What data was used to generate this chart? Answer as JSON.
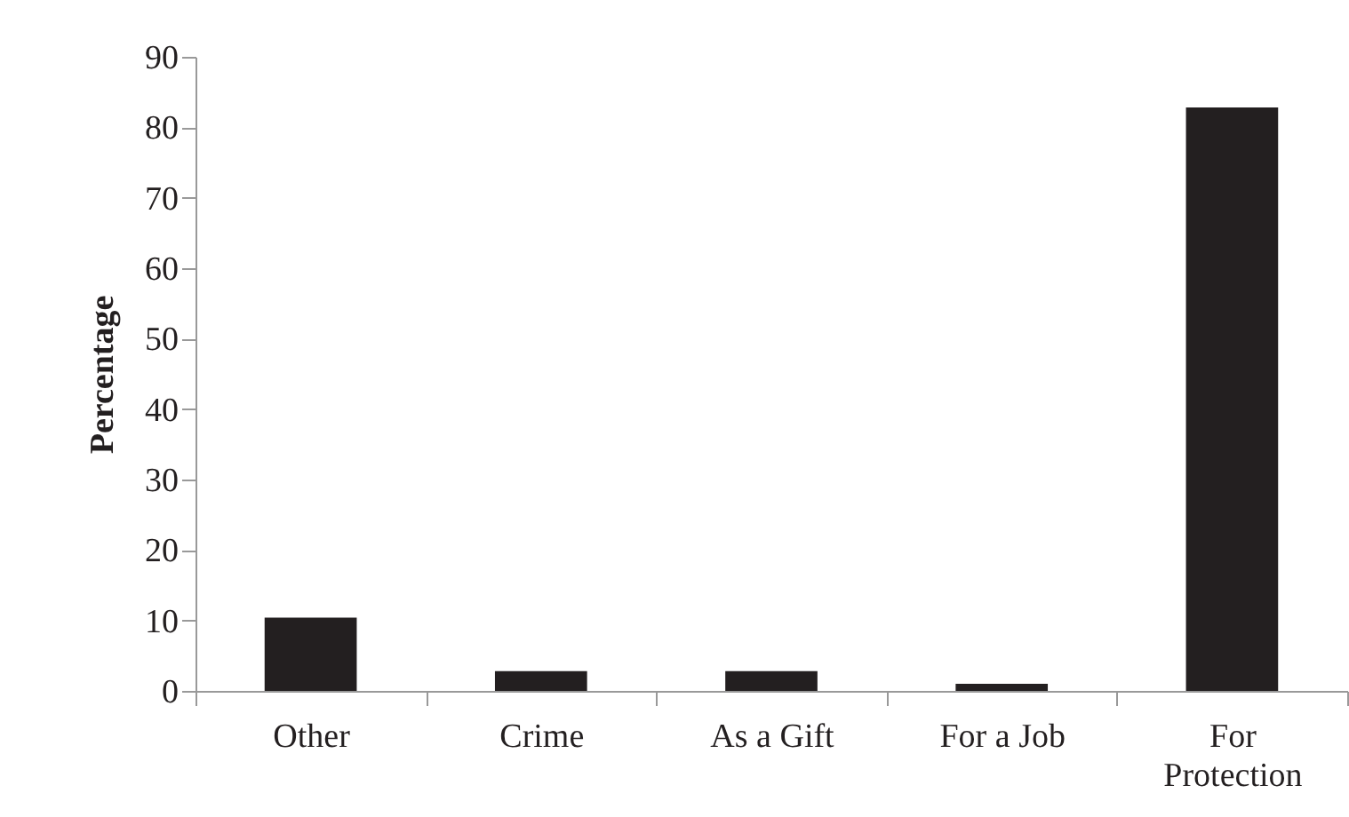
{
  "chart_data": {
    "type": "bar",
    "ylabel": "Percentage",
    "categories": [
      "Other",
      "Crime",
      "As a Gift",
      "For a Job",
      "For Protection"
    ],
    "values": [
      10.4,
      2.8,
      2.8,
      1.0,
      82.8
    ],
    "color": "#231f20",
    "ylim": [
      0,
      90
    ],
    "yticks": [
      0,
      10,
      20,
      30,
      40,
      50,
      60,
      70,
      80,
      90
    ],
    "grid": false
  }
}
